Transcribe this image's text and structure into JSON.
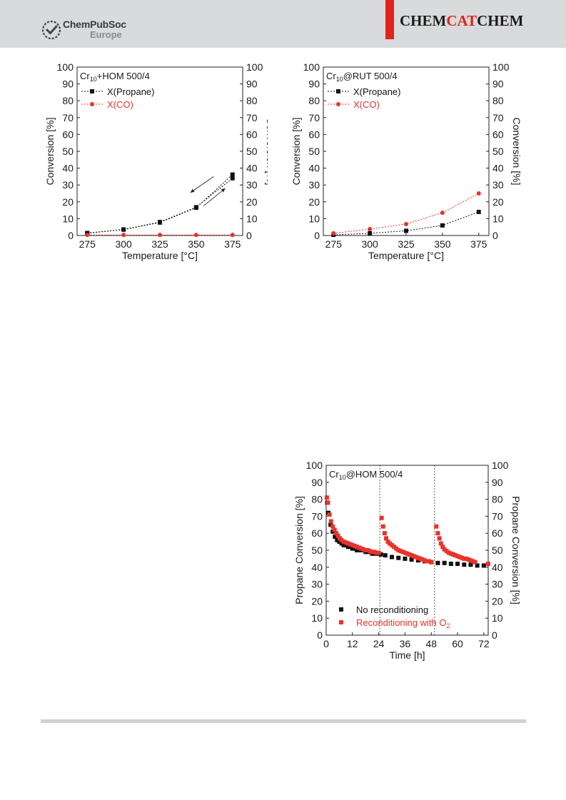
{
  "header": {
    "publisher_line1": "ChemPubSoc",
    "publisher_line2": "Europe",
    "journal_part1": "CHEM",
    "journal_part2": "CAT",
    "journal_part3": "CHEM",
    "accent_color": "#e2231a"
  },
  "chart_data": [
    {
      "type": "line",
      "title": "Cr10+HOM 500/4",
      "title_main": "Cr",
      "title_sub": "10",
      "title_rest": "+HOM 500/4",
      "xlabel": "Temperature [°C]",
      "ylabel": "Conversion [%]",
      "ylabel_right": "Conversion [%]",
      "xlim": [
        268,
        382
      ],
      "ylim": [
        0,
        100
      ],
      "xticks": [
        275,
        300,
        325,
        350,
        375
      ],
      "yticks": [
        0,
        10,
        20,
        30,
        40,
        50,
        60,
        70,
        80,
        90,
        100
      ],
      "legend_position": "top-left",
      "grid": false,
      "series": [
        {
          "name": "X(Propane)",
          "color": "#111111",
          "marker": "square",
          "x": [
            275,
            300,
            325,
            350,
            375
          ],
          "y": [
            1.5,
            3.5,
            7.7,
            16.5,
            36.2
          ]
        },
        {
          "name": "X(Propane)",
          "color": "#111111",
          "marker": "square",
          "show_in_legend": false,
          "x": [
            275,
            300,
            325,
            350,
            375
          ],
          "y": [
            1.3,
            3.6,
            8.0,
            16.8,
            34.0
          ]
        },
        {
          "name": "X(CO)",
          "color": "#e8322b",
          "marker": "circle",
          "x": [
            275,
            300,
            325,
            350,
            375
          ],
          "y": [
            0.3,
            0.3,
            0.3,
            0.3,
            0.3
          ]
        }
      ],
      "annotations": [
        {
          "type": "arrow",
          "from": [
            362,
            35
          ],
          "to": [
            346,
            25.5
          ]
        },
        {
          "type": "arrow",
          "from": [
            355,
            17.5
          ],
          "to": [
            370,
            28
          ]
        }
      ]
    },
    {
      "type": "line",
      "title": "Cr10@RUT 500/4",
      "title_main": "Cr",
      "title_sub": "10",
      "title_rest": "@RUT 500/4",
      "xlabel": "Temperature [°C]",
      "ylabel": "Conversion [%]",
      "ylabel_right": "Conversion [%]",
      "xlim": [
        268,
        382
      ],
      "ylim": [
        0,
        100
      ],
      "xticks": [
        275,
        300,
        325,
        350,
        375
      ],
      "yticks": [
        0,
        10,
        20,
        30,
        40,
        50,
        60,
        70,
        80,
        90,
        100
      ],
      "legend_position": "top-left",
      "grid": false,
      "series": [
        {
          "name": "X(Propane)",
          "color": "#111111",
          "marker": "square",
          "x": [
            275,
            300,
            325,
            350,
            375
          ],
          "y": [
            0.4,
            1.3,
            2.8,
            6.0,
            14.0
          ]
        },
        {
          "name": "X(CO)",
          "color": "#e8322b",
          "marker": "circle",
          "x": [
            275,
            300,
            325,
            350,
            375
          ],
          "y": [
            1.3,
            3.8,
            6.8,
            13.5,
            25.0
          ]
        }
      ]
    },
    {
      "type": "scatter",
      "title": "Cr10@HOM 500/4",
      "title_main": "Cr",
      "title_sub": "10",
      "title_rest": "@HOM 500/4",
      "xlabel": "Time [h]",
      "ylabel": "Propane Conversion [%]",
      "ylabel_right": "Propane Conversion [%]",
      "xlim": [
        0,
        74
      ],
      "ylim": [
        0,
        100
      ],
      "xticks": [
        0,
        12,
        24,
        36,
        48,
        60,
        72
      ],
      "yticks": [
        0,
        10,
        20,
        30,
        40,
        50,
        60,
        70,
        80,
        90,
        100
      ],
      "legend_position": "bottom-left",
      "grid": false,
      "vlines": [
        24.5,
        49.5
      ],
      "series": [
        {
          "name": "No reconditioning",
          "color": "#111111",
          "marker": "square",
          "x": [
            0.5,
            1,
            2,
            3,
            4,
            5,
            6,
            7,
            8,
            9,
            10,
            11,
            12,
            13,
            14,
            15,
            16,
            17,
            18,
            19,
            20,
            21,
            22,
            23,
            24,
            25,
            27,
            30,
            33,
            36,
            39,
            42,
            45,
            48,
            51,
            54,
            57,
            60,
            63,
            66,
            69,
            72
          ],
          "y": [
            78,
            72,
            65,
            61,
            58,
            56,
            55,
            54,
            53,
            53,
            52,
            52,
            51,
            51,
            50,
            50,
            50,
            50,
            49,
            49,
            49,
            48,
            48,
            48,
            48,
            47.5,
            47,
            46,
            45.5,
            45,
            44.5,
            44,
            43.5,
            43,
            42.5,
            42.5,
            42,
            42,
            41.5,
            41.5,
            41,
            41
          ]
        },
        {
          "name": "Reconditioning with O2",
          "label_main": "Reconditioning with O",
          "label_sub": "2",
          "color": "#e8322b",
          "marker": "square",
          "x": [
            0.3,
            0.8,
            1.5,
            2.2,
            3,
            3.8,
            4.6,
            5.4,
            6.2,
            7,
            8,
            9,
            10,
            11,
            12,
            13,
            14,
            15,
            16,
            17,
            18,
            19,
            20,
            21,
            22,
            23,
            24,
            25.3,
            26,
            26.7,
            27.4,
            28.2,
            29,
            30,
            31,
            32,
            33,
            34,
            35,
            36,
            37,
            38,
            39,
            40,
            41,
            42,
            43,
            44,
            45,
            46,
            47,
            48,
            50.3,
            51,
            51.7,
            52.4,
            53.2,
            54,
            55,
            56,
            57,
            58,
            59,
            60,
            61,
            62,
            63,
            64,
            65,
            66,
            67,
            68,
            74
          ],
          "y": [
            81,
            78,
            71,
            67,
            64,
            62,
            60,
            58.5,
            57,
            56,
            55,
            54.5,
            54,
            53.5,
            53,
            52.5,
            52,
            51.5,
            51,
            50.5,
            50,
            50,
            49.5,
            49,
            49,
            48.5,
            48.5,
            69,
            64,
            60,
            57,
            55,
            54,
            53,
            52,
            51,
            50,
            49.5,
            49,
            48.5,
            48,
            47.5,
            47,
            46.5,
            46,
            45.5,
            45,
            44.5,
            44,
            43.5,
            43.5,
            43,
            64,
            60,
            57,
            54,
            52,
            50.5,
            49.5,
            48.5,
            48,
            47.5,
            47,
            46.5,
            46,
            45.5,
            45,
            45,
            44.5,
            44,
            43.5,
            43,
            42
          ]
        }
      ]
    }
  ]
}
